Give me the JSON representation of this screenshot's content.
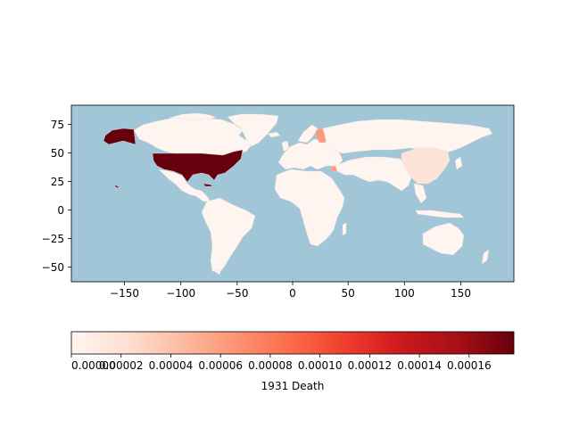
{
  "map": {
    "ocean_color": "#a0c6d8",
    "land_color_min": "#fff5f0",
    "x_ticks": [
      "−150",
      "−100",
      "−50",
      "0",
      "50",
      "100",
      "150"
    ],
    "y_ticks": [
      "75",
      "50",
      "25",
      "0",
      "−25",
      "−50"
    ],
    "highlighted_regions": [
      {
        "name": "USA",
        "level": "max",
        "color": "#67000d"
      },
      {
        "name": "Alaska",
        "level": "max",
        "color": "#67000d"
      },
      {
        "name": "Finland",
        "level": "mid",
        "color": "#fb9a7a"
      },
      {
        "name": "Syria",
        "level": "mid",
        "color": "#fc9a78"
      },
      {
        "name": "China",
        "level": "low",
        "color": "#fee4d8"
      }
    ]
  },
  "colorbar": {
    "label": "1931 Death",
    "colormap": "Reds",
    "tick_labels": [
      "0.00000",
      "0.00002",
      "0.00004",
      "0.00006",
      "0.00008",
      "0.00010",
      "0.00012",
      "0.00014",
      "0.00016"
    ],
    "tick_values": [
      0,
      2e-05,
      4e-05,
      6e-05,
      8e-05,
      0.0001,
      0.00012,
      0.00014,
      0.00016
    ],
    "vmin": 0,
    "vmax": 0.000178
  }
}
